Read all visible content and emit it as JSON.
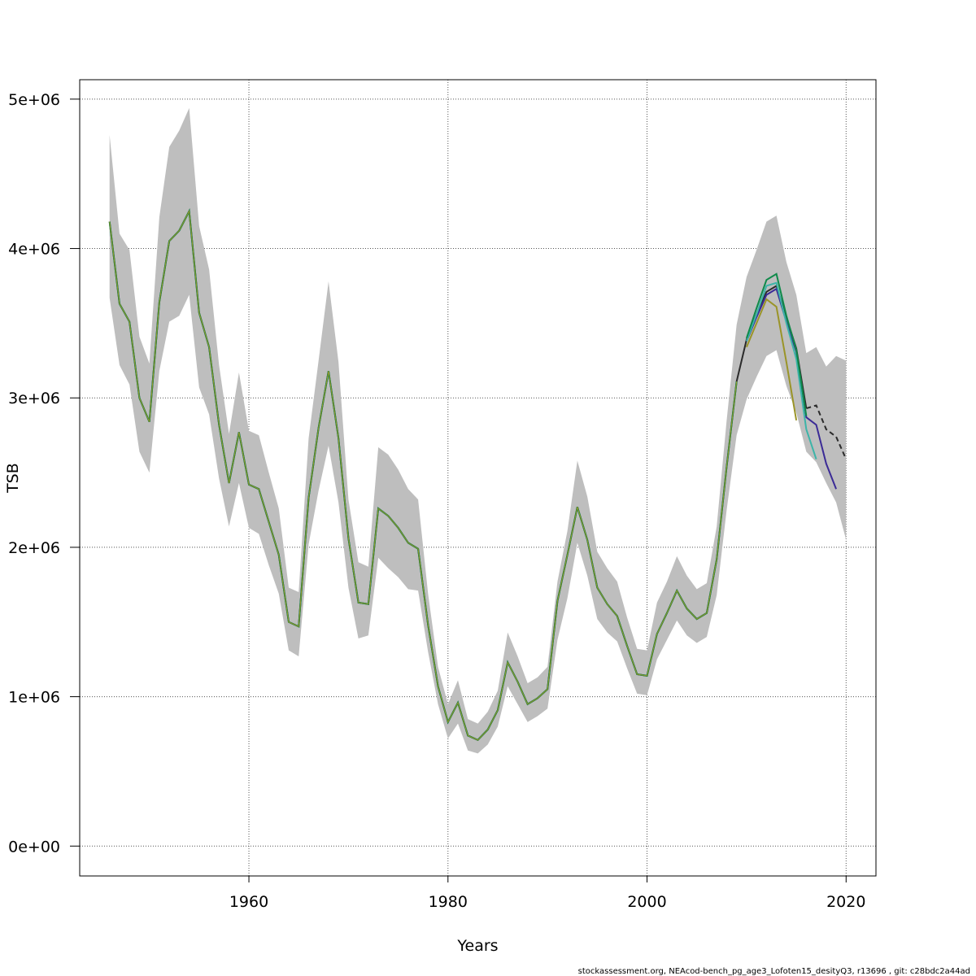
{
  "chart_data": {
    "type": "line",
    "xlabel": "Years",
    "ylabel": "TSB",
    "xlim": [
      1943,
      2023
    ],
    "ylim": [
      -200000,
      5130000
    ],
    "x_ticks": [
      1960,
      1980,
      2000,
      2020
    ],
    "x_tick_labels": [
      "1960",
      "1980",
      "2000",
      "2020"
    ],
    "y_ticks": [
      0,
      1000000,
      2000000,
      3000000,
      4000000,
      5000000
    ],
    "y_tick_labels": [
      "0e+00",
      "1e+06",
      "2e+06",
      "3e+06",
      "4e+06",
      "5e+06"
    ],
    "grid": true,
    "footer": "stockassessment.org, NEAcod-bench_pg_age3_Lofoten15_desityQ3, r13696 , git: c28bdc2a44ad",
    "colors": {
      "band": "#bebebe",
      "grid": "#555555",
      "main": "#2b2b2b",
      "retro": [
        "#3b2b96",
        "#3cb4a8",
        "#0f8a4a",
        "#9a9428"
      ]
    },
    "band": {
      "x": [
        1946,
        1947,
        1948,
        1949,
        1950,
        1951,
        1952,
        1953,
        1954,
        1955,
        1956,
        1957,
        1958,
        1959,
        1960,
        1961,
        1962,
        1963,
        1964,
        1965,
        1966,
        1967,
        1968,
        1969,
        1970,
        1971,
        1972,
        1973,
        1974,
        1975,
        1976,
        1977,
        1978,
        1979,
        1980,
        1981,
        1982,
        1983,
        1984,
        1985,
        1986,
        1987,
        1988,
        1989,
        1990,
        1991,
        1992,
        1993,
        1994,
        1995,
        1996,
        1997,
        1998,
        1999,
        2000,
        2001,
        2002,
        2003,
        2004,
        2005,
        2006,
        2007,
        2008,
        2009,
        2010,
        2011,
        2012,
        2013,
        2014,
        2015,
        2016,
        2017,
        2018,
        2019,
        2020
      ],
      "upper": [
        4760000,
        4100000,
        3990000,
        3410000,
        3230000,
        4210000,
        4680000,
        4790000,
        4940000,
        4150000,
        3860000,
        3220000,
        2760000,
        3170000,
        2780000,
        2750000,
        2500000,
        2260000,
        1730000,
        1700000,
        2730000,
        3250000,
        3780000,
        3240000,
        2320000,
        1900000,
        1870000,
        2670000,
        2620000,
        2520000,
        2390000,
        2320000,
        1690000,
        1200000,
        950000,
        1110000,
        850000,
        820000,
        900000,
        1040000,
        1430000,
        1270000,
        1090000,
        1130000,
        1200000,
        1770000,
        2110000,
        2580000,
        2340000,
        1970000,
        1860000,
        1770000,
        1530000,
        1320000,
        1310000,
        1630000,
        1770000,
        1940000,
        1810000,
        1720000,
        1760000,
        2140000,
        2850000,
        3490000,
        3810000,
        3990000,
        4180000,
        4220000,
        3910000,
        3690000,
        3300000,
        3340000,
        3210000,
        3280000,
        3250000
      ],
      "lower": [
        3670000,
        3220000,
        3090000,
        2640000,
        2500000,
        3180000,
        3510000,
        3550000,
        3690000,
        3070000,
        2890000,
        2460000,
        2140000,
        2430000,
        2130000,
        2090000,
        1880000,
        1690000,
        1310000,
        1270000,
        2020000,
        2380000,
        2680000,
        2300000,
        1730000,
        1390000,
        1410000,
        1930000,
        1860000,
        1800000,
        1720000,
        1710000,
        1300000,
        950000,
        720000,
        820000,
        640000,
        620000,
        680000,
        800000,
        1070000,
        950000,
        830000,
        870000,
        920000,
        1380000,
        1660000,
        2030000,
        1810000,
        1520000,
        1430000,
        1370000,
        1190000,
        1020000,
        1010000,
        1250000,
        1380000,
        1510000,
        1410000,
        1360000,
        1400000,
        1680000,
        2250000,
        2750000,
        2990000,
        3140000,
        3280000,
        3320000,
        3080000,
        2900000,
        2640000,
        2570000,
        2430000,
        2300000,
        2050000
      ]
    },
    "series": [
      {
        "x": [
          1946,
          1947,
          1948,
          1949,
          1950,
          1951,
          1952,
          1953,
          1954,
          1955,
          1956,
          1957,
          1958,
          1959,
          1960,
          1961,
          1962,
          1963,
          1964,
          1965,
          1966,
          1967,
          1968,
          1969,
          1970,
          1971,
          1972,
          1973,
          1974,
          1975,
          1976,
          1977,
          1978,
          1979,
          1980,
          1981,
          1982,
          1983,
          1984,
          1985,
          1986,
          1987,
          1988,
          1989,
          1990,
          1991,
          1992,
          1993,
          1994,
          1995,
          1996,
          1997,
          1998,
          1999,
          2000,
          2001,
          2002,
          2003,
          2004,
          2005,
          2006,
          2007,
          2008,
          2009,
          2010,
          2011,
          2012,
          2013,
          2014,
          2015,
          2016,
          2017,
          2018,
          2019,
          2020
        ],
        "values": [
          4180000,
          3630000,
          3510000,
          3000000,
          2840000,
          3640000,
          4050000,
          4120000,
          4250000,
          3570000,
          3340000,
          2820000,
          2430000,
          2770000,
          2420000,
          2390000,
          2170000,
          1950000,
          1500000,
          1470000,
          2330000,
          2800000,
          3180000,
          2730000,
          2060000,
          1630000,
          1620000,
          2260000,
          2210000,
          2130000,
          2030000,
          1990000,
          1480000,
          1070000,
          830000,
          960000,
          740000,
          710000,
          780000,
          910000,
          1230000,
          1100000,
          950000,
          990000,
          1050000,
          1640000,
          1950000,
          2270000,
          2050000,
          1730000,
          1620000,
          1540000,
          1340000,
          1150000,
          1140000,
          1420000,
          1560000,
          1710000,
          1590000,
          1520000,
          1560000,
          1920000,
          2540000,
          3110000,
          3390000,
          3560000,
          3710000,
          3750000,
          3540000,
          3330000,
          2930000,
          2950000,
          2790000,
          2740000,
          2590000
        ],
        "dashed_from": 2016
      },
      {
        "x": [
          2010,
          2011,
          2012,
          2013,
          2014,
          2015,
          2016,
          2017,
          2018,
          2019
        ],
        "values": [
          3380000,
          3540000,
          3690000,
          3730000,
          3510000,
          3310000,
          2870000,
          2820000,
          2560000,
          2390000
        ]
      },
      {
        "x": [
          2010,
          2011,
          2012,
          2013,
          2014,
          2015,
          2016,
          2017
        ],
        "values": [
          3380000,
          3560000,
          3750000,
          3770000,
          3500000,
          3260000,
          2790000,
          2590000
        ]
      },
      {
        "x": [
          2010,
          2011,
          2012,
          2013,
          2014,
          2015,
          2016
        ],
        "values": [
          3400000,
          3600000,
          3790000,
          3830000,
          3550000,
          3320000,
          2880000
        ]
      },
      {
        "x": [
          2010,
          2011,
          2012,
          2013,
          2014,
          2015
        ],
        "values": [
          3340000,
          3500000,
          3660000,
          3610000,
          3240000,
          2850000
        ]
      }
    ]
  }
}
